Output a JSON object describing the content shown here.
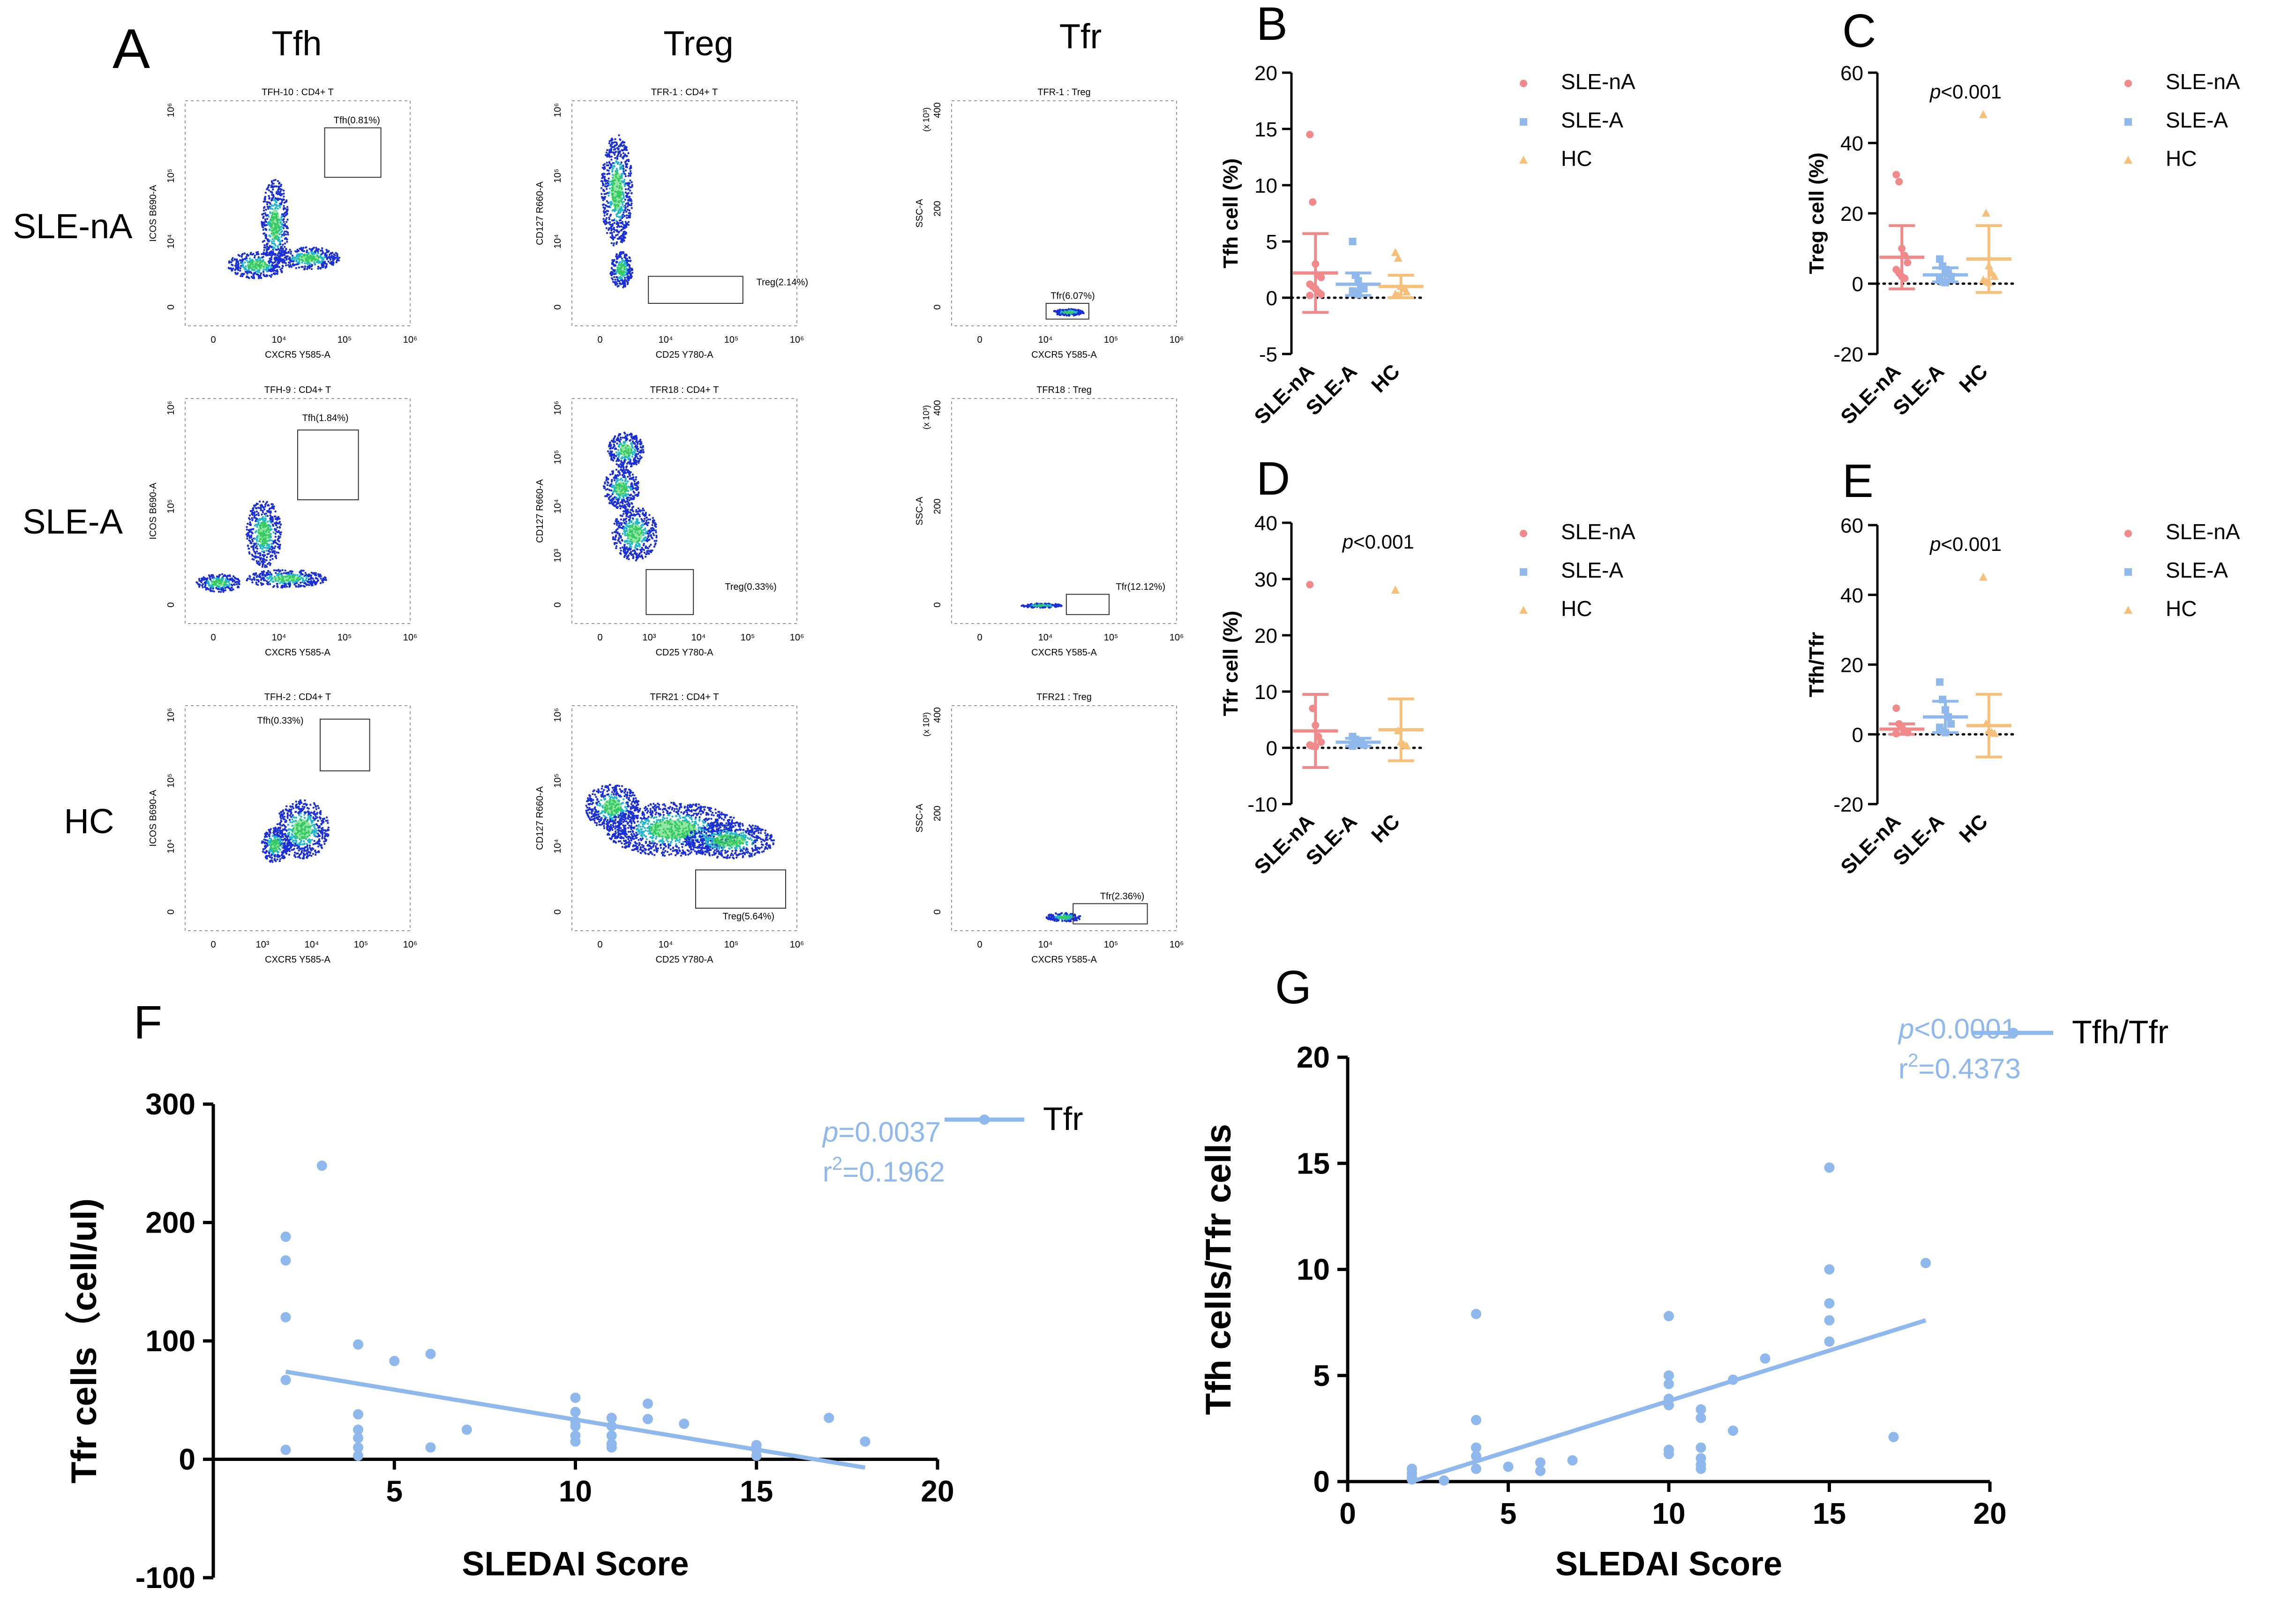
{
  "panel_letters": {
    "A": "A",
    "B": "B",
    "C": "C",
    "D": "D",
    "E": "E",
    "F": "F",
    "G": "G"
  },
  "colors": {
    "nA": "#f08a8a",
    "A": "#8fb8ec",
    "HC": "#f6c07a",
    "reg": "#8fb8ec",
    "axis": "#000000"
  },
  "flow": {
    "columns": [
      "Tfh",
      "Treg",
      "Tfr"
    ],
    "rows": [
      "SLE-nA",
      "SLE-A",
      "HC"
    ],
    "plots": [
      {
        "title": "TFH-10 : CD4+ T",
        "gate": "Tfh(0.81%)",
        "xlabel": "CXCR5 Y585-A",
        "ylabel": "ICOS B690-A",
        "xticks": [
          "0",
          "10⁴",
          "10⁵",
          "10⁶"
        ],
        "yticks": [
          "0",
          "10⁴",
          "10⁵",
          "10⁶"
        ]
      },
      {
        "title": "TFR-1 : CD4+ T",
        "gate": "Treg(2.14%)",
        "xlabel": "CD25 Y780-A",
        "ylabel": "CD127 R660-A",
        "xticks": [
          "0",
          "10⁴",
          "10⁵",
          "10⁶"
        ],
        "yticks": [
          "0",
          "10⁴",
          "10⁵",
          "10⁶"
        ]
      },
      {
        "title": "TFR-1 : Treg",
        "gate": "Tfr(6.07%)",
        "xlabel": "CXCR5 Y585-A",
        "ylabel": "SSC-A",
        "xticks": [
          "0",
          "10⁴",
          "10⁵",
          "10⁶"
        ],
        "yticks": [
          "0",
          "200",
          "400"
        ],
        "yunit": "(x 10³)"
      },
      {
        "title": "TFH-9 : CD4+ T",
        "gate": "Tfh(1.84%)",
        "xlabel": "CXCR5 Y585-A",
        "ylabel": "ICOS B690-A",
        "xticks": [
          "0",
          "10⁴",
          "10⁵",
          "10⁶"
        ],
        "yticks": [
          "0",
          "10⁵",
          "10⁶"
        ]
      },
      {
        "title": "TFR18 : CD4+ T",
        "gate": "Treg(0.33%)",
        "xlabel": "CD25 Y780-A",
        "ylabel": "CD127 R660-A",
        "xticks": [
          "0",
          "10³",
          "10⁴",
          "10⁵",
          "10⁶"
        ],
        "yticks": [
          "0",
          "10³",
          "10⁴",
          "10⁵",
          "10⁶"
        ]
      },
      {
        "title": "TFR18 : Treg",
        "gate": "Tfr(12.12%)",
        "xlabel": "CXCR5 Y585-A",
        "ylabel": "SSC-A",
        "xticks": [
          "0",
          "10⁴",
          "10⁵",
          "10⁶"
        ],
        "yticks": [
          "0",
          "200",
          "400"
        ],
        "yunit": "(x 10³)"
      },
      {
        "title": "TFH-2 : CD4+ T",
        "gate": "Tfh(0.33%)",
        "xlabel": "CXCR5 Y585-A",
        "ylabel": "ICOS B690-A",
        "xticks": [
          "0",
          "10³",
          "10⁴",
          "10⁵",
          "10⁶"
        ],
        "yticks": [
          "0",
          "10⁴",
          "10⁵",
          "10⁶"
        ]
      },
      {
        "title": "TFR21 : CD4+ T",
        "gate": "Treg(5.64%)",
        "xlabel": "CD25 Y780-A",
        "ylabel": "CD127 R660-A",
        "xticks": [
          "0",
          "10⁴",
          "10⁵",
          "10⁶"
        ],
        "yticks": [
          "0",
          "10⁴",
          "10⁵",
          "10⁶"
        ]
      },
      {
        "title": "TFR21 : Treg",
        "gate": "Tfr(2.36%)",
        "xlabel": "CXCR5 Y585-A",
        "ylabel": "SSC-A",
        "xticks": [
          "0",
          "10⁴",
          "10⁵",
          "10⁶"
        ],
        "yticks": [
          "0",
          "200",
          "400"
        ],
        "yunit": "(x 10³)"
      }
    ]
  },
  "chart_data": [
    {
      "id": "B",
      "type": "scatter",
      "title": "",
      "ylabel": "Tfh cell (%)",
      "ylim": [
        -5,
        20
      ],
      "yticks": [
        -5,
        0,
        5,
        10,
        15,
        20
      ],
      "categories": [
        "SLE-nA",
        "SLE-A",
        "HC"
      ],
      "pvalue": "",
      "legend": [
        "SLE-nA",
        "SLE-A",
        "HC"
      ],
      "groups": [
        {
          "name": "SLE-nA",
          "mean": 2.2,
          "sd": 3.5,
          "points": [
            14.5,
            8.5,
            3,
            2,
            1.8,
            1.2,
            1,
            0.8,
            0.5,
            0.3,
            0.2
          ]
        },
        {
          "name": "SLE-A",
          "mean": 1.2,
          "sd": 1.0,
          "points": [
            5,
            2,
            1.5,
            1,
            0.8,
            0.6,
            0.5,
            0.3
          ]
        },
        {
          "name": "HC",
          "mean": 1.0,
          "sd": 1.0,
          "points": [
            4,
            3.5,
            1,
            0.8,
            0.5,
            0.3,
            0.2
          ]
        }
      ]
    },
    {
      "id": "C",
      "type": "scatter",
      "title": "",
      "ylabel": "Treg cell (%)",
      "ylim": [
        -20,
        60
      ],
      "yticks": [
        -20,
        0,
        20,
        40,
        60
      ],
      "categories": [
        "SLE-nA",
        "SLE-A",
        "HC"
      ],
      "pvalue": "<0.001",
      "legend": [
        "SLE-nA",
        "SLE-A",
        "HC"
      ],
      "groups": [
        {
          "name": "SLE-nA",
          "mean": 7.5,
          "sd": 9,
          "points": [
            31,
            29,
            10,
            8,
            6,
            4,
            3,
            2,
            1.5
          ]
        },
        {
          "name": "SLE-A",
          "mean": 2.5,
          "sd": 2,
          "points": [
            7,
            5,
            4,
            3,
            2,
            1,
            0.5,
            0.3
          ]
        },
        {
          "name": "HC",
          "mean": 7,
          "sd": 9.5,
          "points": [
            48,
            20,
            5,
            3,
            2,
            1,
            0.5,
            0.3
          ]
        }
      ]
    },
    {
      "id": "D",
      "type": "scatter",
      "title": "",
      "ylabel": "Tfr cell (%)",
      "ylim": [
        -10,
        40
      ],
      "yticks": [
        -10,
        0,
        10,
        20,
        30,
        40
      ],
      "categories": [
        "SLE-nA",
        "SLE-A",
        "HC"
      ],
      "pvalue": "<0.001",
      "legend": [
        "SLE-nA",
        "SLE-A",
        "HC"
      ],
      "groups": [
        {
          "name": "SLE-nA",
          "mean": 3,
          "sd": 6.5,
          "points": [
            29,
            7,
            4,
            2,
            1,
            0.5,
            0.3,
            0.2
          ]
        },
        {
          "name": "SLE-A",
          "mean": 1,
          "sd": 0.7,
          "points": [
            2,
            1.5,
            1,
            0.8,
            0.5,
            0.3
          ]
        },
        {
          "name": "HC",
          "mean": 3.2,
          "sd": 5.5,
          "points": [
            28,
            3,
            1,
            0.5,
            0.3
          ]
        }
      ]
    },
    {
      "id": "E",
      "type": "scatter",
      "title": "",
      "ylabel": "Tfh/Tfr",
      "ylim": [
        -20,
        60
      ],
      "yticks": [
        -20,
        0,
        20,
        40,
        60
      ],
      "categories": [
        "SLE-nA",
        "SLE-A",
        "HC"
      ],
      "pvalue": "<0.001",
      "legend": [
        "SLE-nA",
        "SLE-A",
        "HC"
      ],
      "groups": [
        {
          "name": "SLE-nA",
          "mean": 1.5,
          "sd": 1.5,
          "points": [
            7.5,
            3,
            2,
            1,
            0.5,
            0.2
          ]
        },
        {
          "name": "SLE-A",
          "mean": 5,
          "sd": 4.5,
          "points": [
            15,
            10,
            7,
            5,
            3,
            2,
            1,
            0.5
          ]
        },
        {
          "name": "HC",
          "mean": 2.5,
          "sd": 9,
          "points": [
            45,
            3,
            1,
            0.5,
            0.2
          ]
        }
      ]
    },
    {
      "id": "F",
      "type": "scatter",
      "title": "",
      "xlabel": "SLEDAI Score",
      "ylabel": "Tfr cells（cell/ul)",
      "xlim": [
        0,
        20
      ],
      "ylim": [
        -100,
        300
      ],
      "xticks": [
        5,
        10,
        15,
        20
      ],
      "yticks": [
        -100,
        0,
        100,
        200,
        300
      ],
      "series": [
        {
          "name": "Tfr",
          "points": [
            [
              2,
              188
            ],
            [
              2,
              168
            ],
            [
              2,
              120
            ],
            [
              2,
              67
            ],
            [
              2,
              8
            ],
            [
              3,
              248
            ],
            [
              4,
              97
            ],
            [
              4,
              38
            ],
            [
              4,
              25
            ],
            [
              4,
              18
            ],
            [
              4,
              10
            ],
            [
              4,
              3
            ],
            [
              5,
              83
            ],
            [
              6,
              89
            ],
            [
              6,
              10
            ],
            [
              7,
              25
            ],
            [
              10,
              52
            ],
            [
              10,
              40
            ],
            [
              10,
              32
            ],
            [
              10,
              28
            ],
            [
              10,
              20
            ],
            [
              10,
              15
            ],
            [
              11,
              35
            ],
            [
              11,
              28
            ],
            [
              11,
              20
            ],
            [
              11,
              13
            ],
            [
              11,
              10
            ],
            [
              12,
              47
            ],
            [
              12,
              34
            ],
            [
              13,
              30
            ],
            [
              15,
              12
            ],
            [
              15,
              8
            ],
            [
              15,
              3
            ],
            [
              17,
              35
            ],
            [
              18,
              15
            ]
          ]
        }
      ],
      "fit": {
        "x1": 2,
        "y1": 74,
        "x2": 18,
        "y2": -7
      },
      "stats": {
        "p_label": "p",
        "p_value": "=0.0037",
        "r2_label": "r",
        "r2_value": "=0.1962"
      }
    },
    {
      "id": "G",
      "type": "scatter",
      "title": "",
      "xlabel": "SLEDAI Score",
      "ylabel": "Tfh cells/Tfr cells",
      "xlim": [
        0,
        20
      ],
      "ylim": [
        0,
        20
      ],
      "xticks": [
        0,
        5,
        10,
        15,
        20
      ],
      "yticks": [
        0,
        5,
        10,
        15,
        20
      ],
      "series": [
        {
          "name": "Tfh/Tfr",
          "points": [
            [
              2,
              0.6
            ],
            [
              2,
              0.4
            ],
            [
              2,
              0.2
            ],
            [
              2,
              0.1
            ],
            [
              3,
              0.05
            ],
            [
              4,
              7.9
            ],
            [
              4,
              2.9
            ],
            [
              4,
              1.6
            ],
            [
              4,
              1.2
            ],
            [
              4,
              0.6
            ],
            [
              5,
              0.7
            ],
            [
              6,
              0.9
            ],
            [
              6,
              0.5
            ],
            [
              7,
              1.0
            ],
            [
              10,
              7.8
            ],
            [
              10,
              5.0
            ],
            [
              10,
              4.6
            ],
            [
              10,
              3.9
            ],
            [
              10,
              3.6
            ],
            [
              10,
              1.5
            ],
            [
              10,
              1.3
            ],
            [
              11,
              3.4
            ],
            [
              11,
              3.0
            ],
            [
              11,
              1.6
            ],
            [
              11,
              1.1
            ],
            [
              11,
              0.8
            ],
            [
              11,
              0.6
            ],
            [
              12,
              4.8
            ],
            [
              12,
              2.4
            ],
            [
              13,
              5.8
            ],
            [
              15,
              14.8
            ],
            [
              15,
              10.0
            ],
            [
              15,
              8.4
            ],
            [
              15,
              7.6
            ],
            [
              15,
              6.6
            ],
            [
              17,
              2.1
            ],
            [
              18,
              10.3
            ]
          ]
        }
      ],
      "fit": {
        "x1": 2,
        "y1": 0,
        "x2": 18,
        "y2": 7.6
      },
      "stats": {
        "p_label": "p",
        "p_value": "<0.0001",
        "r2_label": "r",
        "r2_value": "=0.4373"
      }
    }
  ]
}
